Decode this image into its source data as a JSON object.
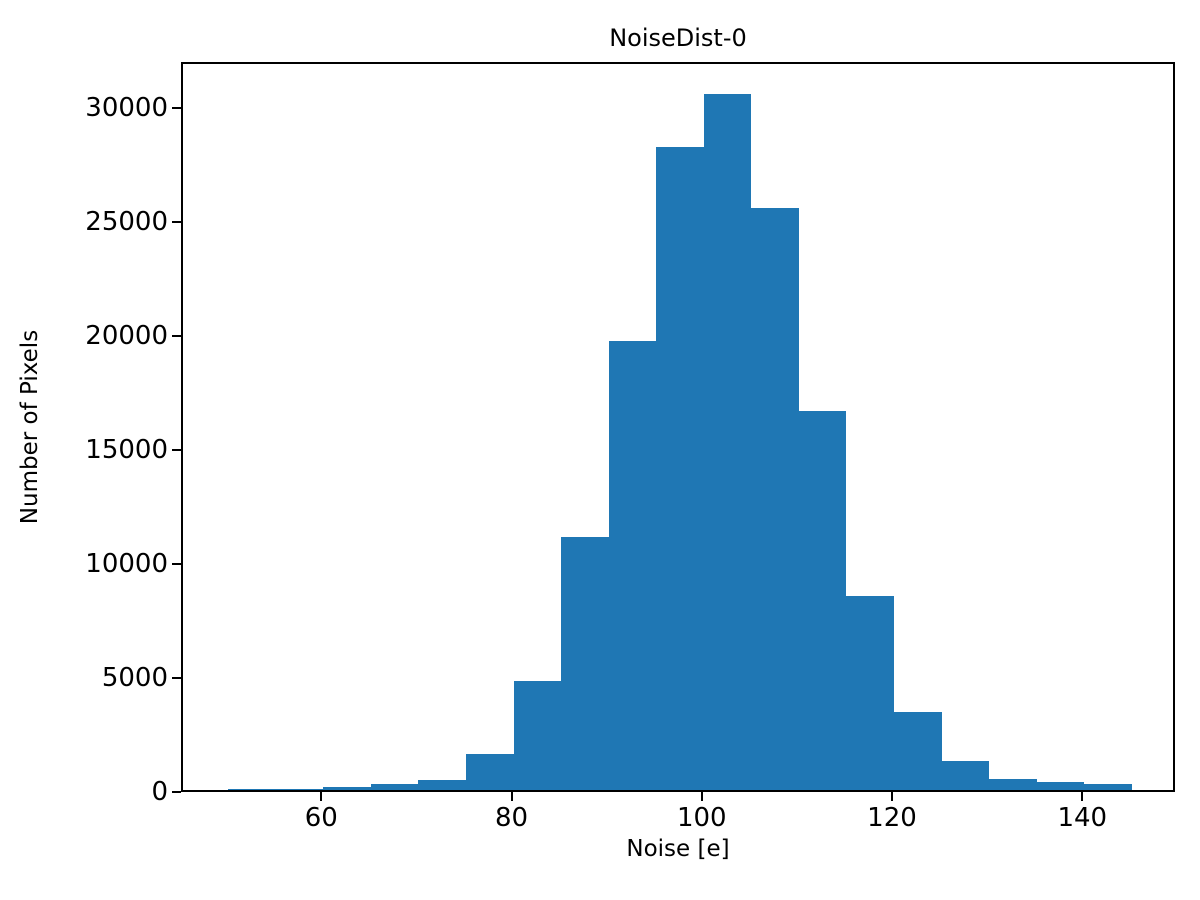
{
  "figure": {
    "background_color": "#ffffff",
    "text_color": "#000000"
  },
  "chart_data": {
    "type": "bar",
    "subtype": "histogram",
    "title": "NoiseDist-0",
    "xlabel": "Noise [e]",
    "ylabel": "Number of Pixels",
    "bar_color": "#1f77b4",
    "grid": false,
    "legend": "none",
    "bin_width": 5,
    "bin_edges": [
      50,
      55,
      60,
      65,
      70,
      75,
      80,
      85,
      90,
      95,
      100,
      105,
      110,
      115,
      120,
      125,
      130,
      135,
      140,
      145
    ],
    "values": [
      30,
      60,
      120,
      250,
      450,
      1600,
      4800,
      11100,
      19700,
      28200,
      30500,
      25500,
      16600,
      8500,
      3400,
      1250,
      500,
      350,
      250
    ],
    "xlim": [
      45.25,
      149.75
    ],
    "ylim": [
      0,
      32000
    ],
    "xticks": [
      60,
      80,
      100,
      120,
      140
    ],
    "yticks": [
      0,
      5000,
      10000,
      15000,
      20000,
      25000,
      30000
    ]
  }
}
